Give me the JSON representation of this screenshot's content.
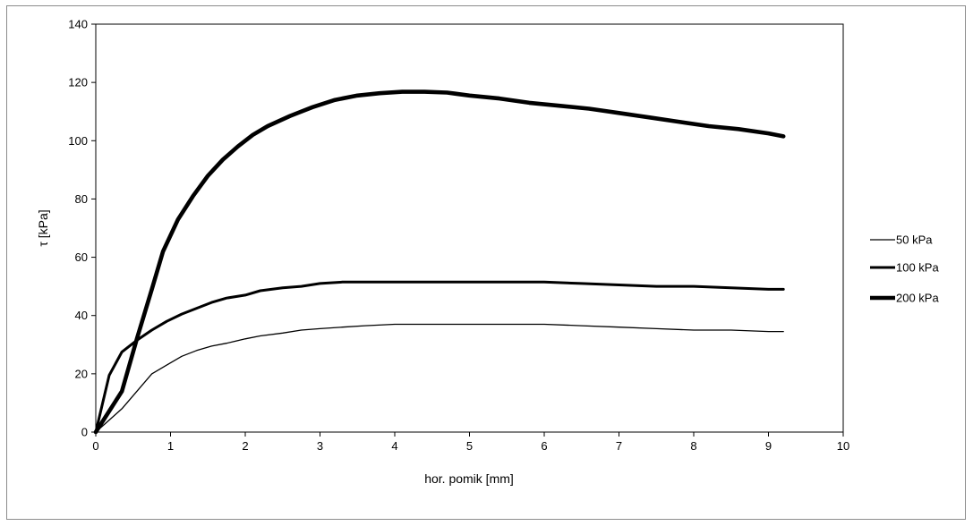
{
  "chart_data": {
    "type": "line",
    "title": "",
    "xlabel": "hor. pomik [mm]",
    "ylabel": "τ [kPa]",
    "xlim": [
      0,
      10
    ],
    "ylim": [
      0,
      140
    ],
    "x_ticks": [
      0,
      1,
      2,
      3,
      4,
      5,
      6,
      7,
      8,
      9,
      10
    ],
    "y_ticks": [
      0,
      20,
      40,
      60,
      80,
      100,
      120,
      140
    ],
    "grid": false,
    "legend_position": "right",
    "series": [
      {
        "name": "50 kPa",
        "color": "#000000",
        "stroke": "thin",
        "x": [
          0,
          0.35,
          0.55,
          0.75,
          0.95,
          1.15,
          1.35,
          1.55,
          1.75,
          2.0,
          2.2,
          2.5,
          2.75,
          3.0,
          3.3,
          3.6,
          4.0,
          4.5,
          5.0,
          5.5,
          6.0,
          6.5,
          7.0,
          7.5,
          8.0,
          8.5,
          9.0,
          9.2
        ],
        "y": [
          0,
          8,
          14,
          20,
          23,
          26,
          28,
          29.5,
          30.5,
          32,
          33,
          34,
          35,
          35.5,
          36,
          36.5,
          37,
          37,
          37,
          37,
          37,
          36.5,
          36,
          35.5,
          35,
          35,
          34.5,
          34.5
        ]
      },
      {
        "name": "100 kPa",
        "color": "#000000",
        "stroke": "medium",
        "x": [
          0,
          0.18,
          0.35,
          0.55,
          0.75,
          0.95,
          1.15,
          1.35,
          1.55,
          1.75,
          2.0,
          2.2,
          2.5,
          2.75,
          3.0,
          3.3,
          3.6,
          4.0,
          4.5,
          5.0,
          5.5,
          6.0,
          6.5,
          7.0,
          7.5,
          8.0,
          8.5,
          9.0,
          9.2
        ],
        "y": [
          0,
          19.5,
          27.5,
          31.5,
          35,
          38,
          40.5,
          42.5,
          44.5,
          46,
          47,
          48.5,
          49.5,
          50,
          51,
          51.5,
          51.5,
          51.5,
          51.5,
          51.5,
          51.5,
          51.5,
          51,
          50.5,
          50,
          50,
          49.5,
          49,
          49
        ]
      },
      {
        "name": "200 kPa",
        "color": "#000000",
        "stroke": "thick",
        "x": [
          0,
          0.35,
          0.55,
          0.75,
          0.9,
          1.1,
          1.3,
          1.5,
          1.7,
          1.9,
          2.1,
          2.3,
          2.6,
          2.9,
          3.2,
          3.5,
          3.8,
          4.1,
          4.4,
          4.7,
          5.0,
          5.4,
          5.8,
          6.2,
          6.6,
          7.0,
          7.4,
          7.8,
          8.2,
          8.6,
          9.0,
          9.2
        ],
        "y": [
          0,
          14,
          32,
          49,
          62,
          73,
          81,
          88,
          93.5,
          98,
          102,
          105,
          108.5,
          111.5,
          114,
          115.5,
          116.3,
          116.8,
          116.8,
          116.5,
          115.5,
          114.5,
          113,
          112,
          111,
          109.5,
          108,
          106.5,
          105,
          104,
          102.5,
          101.5
        ]
      }
    ]
  }
}
